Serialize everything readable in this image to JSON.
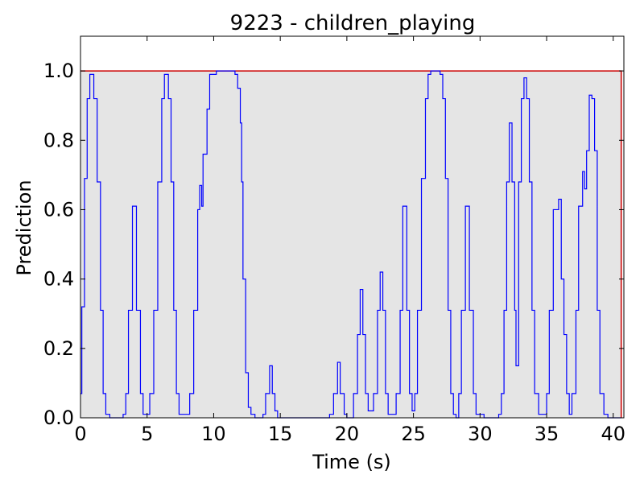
{
  "chart_data": {
    "type": "line",
    "title": "9223 - children_playing",
    "xlabel": "Time (s)",
    "ylabel": "Prediction",
    "xlim": [
      0,
      40.8
    ],
    "ylim": [
      0,
      1.1
    ],
    "xticks": [
      0,
      5,
      10,
      15,
      20,
      25,
      30,
      35,
      40
    ],
    "xtick_labels": [
      "0",
      "5",
      "10",
      "15",
      "20",
      "25",
      "30",
      "35",
      "40"
    ],
    "yticks": [
      0.0,
      0.2,
      0.4,
      0.6,
      0.8,
      1.0
    ],
    "ytick_labels": [
      "0.0",
      "0.2",
      "0.4",
      "0.6",
      "0.8",
      "1.0"
    ],
    "grid": false,
    "colors": {
      "prediction": "#0000ff",
      "ground_truth": "#cc0000",
      "shaded": "#e5e5e5",
      "axes": "#000000"
    },
    "ground_truth": {
      "start": 0,
      "end": 40.6,
      "value": 1.0
    },
    "series": [
      {
        "style": "step",
        "points": [
          [
            0.0,
            0.07
          ],
          [
            0.1,
            0.32
          ],
          [
            0.3,
            0.69
          ],
          [
            0.5,
            0.92
          ],
          [
            0.7,
            0.99
          ],
          [
            1.0,
            0.92
          ],
          [
            1.25,
            0.68
          ],
          [
            1.5,
            0.31
          ],
          [
            1.7,
            0.07
          ],
          [
            1.9,
            0.01
          ],
          [
            2.2,
            0.0
          ],
          [
            3.2,
            0.01
          ],
          [
            3.4,
            0.07
          ],
          [
            3.6,
            0.31
          ],
          [
            3.9,
            0.61
          ],
          [
            4.2,
            0.31
          ],
          [
            4.5,
            0.07
          ],
          [
            4.7,
            0.01
          ],
          [
            5.2,
            0.07
          ],
          [
            5.5,
            0.31
          ],
          [
            5.8,
            0.68
          ],
          [
            6.1,
            0.92
          ],
          [
            6.3,
            0.99
          ],
          [
            6.6,
            0.92
          ],
          [
            6.8,
            0.68
          ],
          [
            7.0,
            0.31
          ],
          [
            7.2,
            0.07
          ],
          [
            7.4,
            0.01
          ],
          [
            8.2,
            0.07
          ],
          [
            8.5,
            0.31
          ],
          [
            8.8,
            0.6
          ],
          [
            8.95,
            0.67
          ],
          [
            9.1,
            0.61
          ],
          [
            9.2,
            0.76
          ],
          [
            9.5,
            0.89
          ],
          [
            9.7,
            0.99
          ],
          [
            10.2,
            1.0
          ],
          [
            11.6,
            0.99
          ],
          [
            11.8,
            0.95
          ],
          [
            12.0,
            0.85
          ],
          [
            12.1,
            0.68
          ],
          [
            12.2,
            0.4
          ],
          [
            12.4,
            0.13
          ],
          [
            12.6,
            0.03
          ],
          [
            12.8,
            0.01
          ],
          [
            13.1,
            0.0
          ],
          [
            13.7,
            0.01
          ],
          [
            13.9,
            0.07
          ],
          [
            14.2,
            0.15
          ],
          [
            14.4,
            0.07
          ],
          [
            14.6,
            0.02
          ],
          [
            14.8,
            0.0
          ],
          [
            18.7,
            0.01
          ],
          [
            19.0,
            0.07
          ],
          [
            19.3,
            0.16
          ],
          [
            19.5,
            0.07
          ],
          [
            19.8,
            0.01
          ],
          [
            20.0,
            0.0
          ],
          [
            20.5,
            0.07
          ],
          [
            20.8,
            0.24
          ],
          [
            21.0,
            0.37
          ],
          [
            21.2,
            0.24
          ],
          [
            21.4,
            0.07
          ],
          [
            21.6,
            0.02
          ],
          [
            22.0,
            0.07
          ],
          [
            22.3,
            0.31
          ],
          [
            22.5,
            0.42
          ],
          [
            22.7,
            0.31
          ],
          [
            22.9,
            0.07
          ],
          [
            23.1,
            0.01
          ],
          [
            23.7,
            0.07
          ],
          [
            24.0,
            0.31
          ],
          [
            24.2,
            0.61
          ],
          [
            24.5,
            0.31
          ],
          [
            24.7,
            0.07
          ],
          [
            24.9,
            0.02
          ],
          [
            25.1,
            0.07
          ],
          [
            25.3,
            0.31
          ],
          [
            25.6,
            0.69
          ],
          [
            25.9,
            0.92
          ],
          [
            26.1,
            0.99
          ],
          [
            26.3,
            1.0
          ],
          [
            27.0,
            0.99
          ],
          [
            27.2,
            0.92
          ],
          [
            27.4,
            0.69
          ],
          [
            27.6,
            0.31
          ],
          [
            27.8,
            0.07
          ],
          [
            28.0,
            0.01
          ],
          [
            28.2,
            0.0
          ],
          [
            28.4,
            0.07
          ],
          [
            28.6,
            0.31
          ],
          [
            28.9,
            0.61
          ],
          [
            29.2,
            0.31
          ],
          [
            29.5,
            0.07
          ],
          [
            29.7,
            0.01
          ],
          [
            30.3,
            0.0
          ],
          [
            31.4,
            0.01
          ],
          [
            31.6,
            0.07
          ],
          [
            31.8,
            0.31
          ],
          [
            32.0,
            0.68
          ],
          [
            32.2,
            0.85
          ],
          [
            32.4,
            0.68
          ],
          [
            32.6,
            0.31
          ],
          [
            32.7,
            0.15
          ],
          [
            32.9,
            0.68
          ],
          [
            33.1,
            0.92
          ],
          [
            33.3,
            0.98
          ],
          [
            33.5,
            0.92
          ],
          [
            33.7,
            0.68
          ],
          [
            33.9,
            0.31
          ],
          [
            34.1,
            0.07
          ],
          [
            34.4,
            0.01
          ],
          [
            35.0,
            0.07
          ],
          [
            35.2,
            0.31
          ],
          [
            35.5,
            0.6
          ],
          [
            35.9,
            0.63
          ],
          [
            36.1,
            0.4
          ],
          [
            36.3,
            0.24
          ],
          [
            36.5,
            0.07
          ],
          [
            36.7,
            0.01
          ],
          [
            36.9,
            0.07
          ],
          [
            37.2,
            0.31
          ],
          [
            37.4,
            0.61
          ],
          [
            37.7,
            0.71
          ],
          [
            37.85,
            0.66
          ],
          [
            38.0,
            0.77
          ],
          [
            38.2,
            0.93
          ],
          [
            38.4,
            0.92
          ],
          [
            38.6,
            0.77
          ],
          [
            38.8,
            0.31
          ],
          [
            39.0,
            0.07
          ],
          [
            39.3,
            0.01
          ],
          [
            39.6,
            0.0
          ],
          [
            40.6,
            0.0
          ]
        ]
      }
    ]
  }
}
